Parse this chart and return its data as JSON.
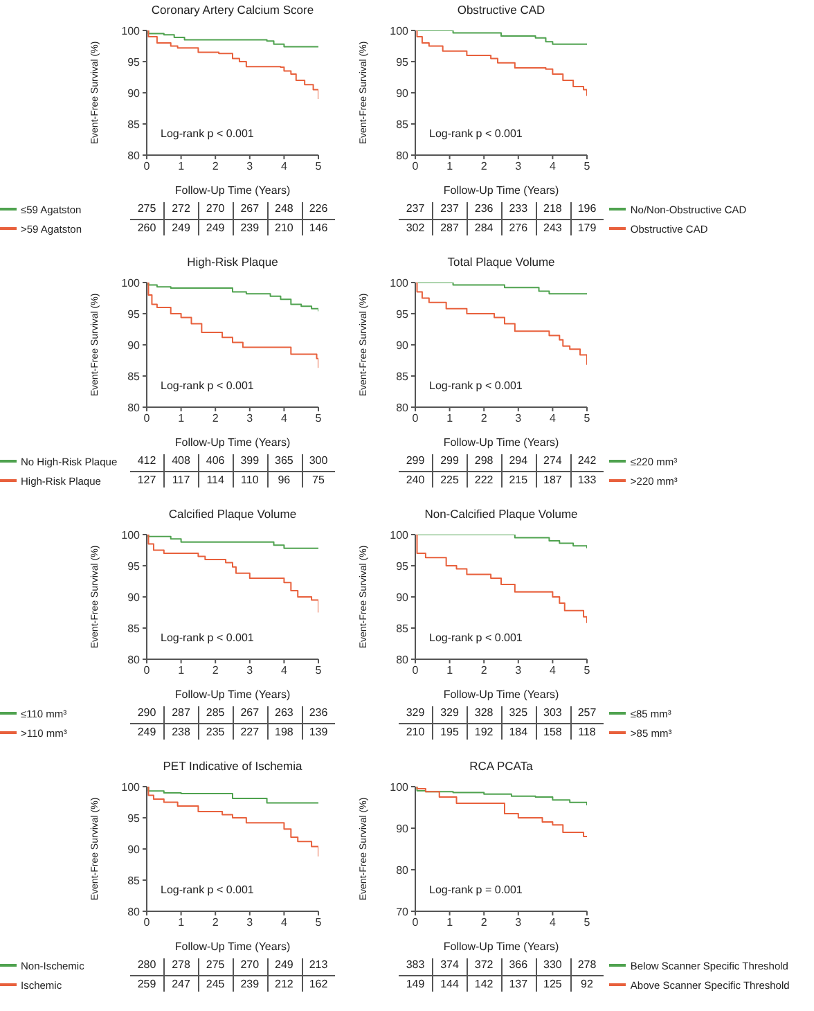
{
  "chart_data": [
    {
      "type": "step",
      "title": "Coronary Artery Calcium Score",
      "xlabel": "Follow-Up Time (Years)",
      "ylabel": "Event-Free Survival (%)",
      "xlim": [
        0,
        5
      ],
      "xticks": [
        0,
        1,
        2,
        3,
        4,
        5
      ],
      "ylim": [
        80,
        100
      ],
      "yticks": [
        80,
        85,
        90,
        95,
        100
      ],
      "legend": "bottom left",
      "series": [
        {
          "name": "≤59 Agatston",
          "color": "#4fa24f",
          "x": [
            0,
            0.05,
            0.5,
            0.8,
            1.1,
            3.5,
            3.7,
            4.0,
            5
          ],
          "values": [
            100,
            99.5,
            99.3,
            98.9,
            98.5,
            98.3,
            97.8,
            97.4,
            97.3
          ]
        },
        {
          "name": ">59 Agatston",
          "color": "#e8603c",
          "x": [
            0,
            0.05,
            0.3,
            0.7,
            0.9,
            1.5,
            2.1,
            2.5,
            2.7,
            2.9,
            3.9,
            4.0,
            4.2,
            4.35,
            4.6,
            4.85,
            5
          ],
          "values": [
            100,
            99,
            98,
            97.5,
            97.2,
            96.5,
            96.3,
            95.5,
            95,
            94.2,
            94.1,
            93.5,
            93,
            92,
            91.3,
            90.5,
            89
          ]
        }
      ],
      "annotations": [
        "Log-rank p < 0.001",
        "275",
        "272",
        "270",
        "267",
        "248",
        "226",
        "260",
        "249",
        "249",
        "239",
        "210",
        "146"
      ]
    },
    {
      "type": "step",
      "title": "Obstructive CAD",
      "xlabel": "Follow-Up Time (Years)",
      "ylabel": "Event-Free Survival (%)",
      "xlim": [
        0,
        5
      ],
      "xticks": [
        0,
        1,
        2,
        3,
        4,
        5
      ],
      "ylim": [
        80,
        100
      ],
      "yticks": [
        80,
        85,
        90,
        95,
        100
      ],
      "legend": "bottom right",
      "series": [
        {
          "name": "No/Non-Obstructive CAD",
          "color": "#4fa24f",
          "x": [
            0,
            1.1,
            2.5,
            3.5,
            3.8,
            4.0,
            5
          ],
          "values": [
            100,
            99.6,
            99.1,
            98.8,
            98.2,
            97.8,
            97.8
          ]
        },
        {
          "name": "Obstructive CAD",
          "color": "#e8603c",
          "x": [
            0,
            0.05,
            0.2,
            0.4,
            0.8,
            1.5,
            2.2,
            2.4,
            2.9,
            3.8,
            4.0,
            4.3,
            4.6,
            4.9,
            5
          ],
          "values": [
            100,
            99,
            98,
            97.5,
            96.7,
            96,
            95.5,
            94.8,
            94,
            93.8,
            93,
            92,
            91,
            90.5,
            89.5
          ]
        }
      ],
      "annotations": [
        "Log-rank p < 0.001",
        "237",
        "237",
        "236",
        "233",
        "218",
        "196",
        "302",
        "287",
        "284",
        "276",
        "243",
        "179"
      ]
    },
    {
      "type": "step",
      "title": "High-Risk Plaque",
      "xlabel": "Follow-Up Time (Years)",
      "ylabel": "Event-Free Survival (%)",
      "xlim": [
        0,
        5
      ],
      "xticks": [
        0,
        1,
        2,
        3,
        4,
        5
      ],
      "ylim": [
        80,
        100
      ],
      "yticks": [
        80,
        85,
        90,
        95,
        100
      ],
      "legend": "bottom left",
      "series": [
        {
          "name": "No High-Risk Plaque",
          "color": "#4fa24f",
          "x": [
            0,
            0.05,
            0.3,
            0.7,
            2.5,
            2.9,
            3.6,
            3.9,
            4.2,
            4.5,
            4.8,
            5
          ],
          "values": [
            100,
            99.6,
            99.3,
            99.1,
            98.5,
            98.2,
            97.8,
            97.3,
            96.5,
            96.2,
            95.8,
            95.4
          ]
        },
        {
          "name": "High-Risk Plaque",
          "color": "#e8603c",
          "x": [
            0,
            0.05,
            0.15,
            0.3,
            0.7,
            1.0,
            1.3,
            1.6,
            2.2,
            2.5,
            2.8,
            4.2,
            4.95,
            5
          ],
          "values": [
            100,
            98,
            96.5,
            96,
            95,
            94.4,
            93.4,
            92,
            91.2,
            90.4,
            89.6,
            88.5,
            87.8,
            86.3
          ]
        }
      ],
      "annotations": [
        "Log-rank p < 0.001",
        "412",
        "408",
        "406",
        "399",
        "365",
        "300",
        "127",
        "117",
        "114",
        "110",
        "96",
        "75"
      ]
    },
    {
      "type": "step",
      "title": "Total Plaque Volume",
      "xlabel": "Follow-Up Time (Years)",
      "ylabel": "Event-Free Survival (%)",
      "xlim": [
        0,
        5
      ],
      "xticks": [
        0,
        1,
        2,
        3,
        4,
        5
      ],
      "ylim": [
        80,
        100
      ],
      "yticks": [
        80,
        85,
        90,
        95,
        100
      ],
      "legend": "bottom right",
      "series": [
        {
          "name": "≤220 mm³",
          "color": "#4fa24f",
          "x": [
            0,
            1.1,
            2.6,
            3.6,
            3.9,
            5
          ],
          "values": [
            100,
            99.6,
            99.2,
            98.6,
            98.2,
            98.2
          ]
        },
        {
          "name": ">220 mm³",
          "color": "#e8603c",
          "x": [
            0,
            0.05,
            0.2,
            0.4,
            0.9,
            1.5,
            2.3,
            2.6,
            2.9,
            3.9,
            4.2,
            4.3,
            4.5,
            4.8,
            5
          ],
          "values": [
            100,
            98.5,
            97.5,
            96.8,
            95.8,
            95,
            94.4,
            93.4,
            92.2,
            91.5,
            90.8,
            89.8,
            89.3,
            88.4,
            86.8
          ]
        }
      ],
      "annotations": [
        "Log-rank p < 0.001",
        "299",
        "299",
        "298",
        "294",
        "274",
        "242",
        "240",
        "225",
        "222",
        "215",
        "187",
        "133"
      ]
    },
    {
      "type": "step",
      "title": "Calcified Plaque Volume",
      "xlabel": "Follow-Up Time (Years)",
      "ylabel": "Event-Free Survival (%)",
      "xlim": [
        0,
        5
      ],
      "xticks": [
        0,
        1,
        2,
        3,
        4,
        5
      ],
      "ylim": [
        80,
        100
      ],
      "yticks": [
        80,
        85,
        90,
        95,
        100
      ],
      "legend": "bottom left",
      "series": [
        {
          "name": "≤110 mm³",
          "color": "#4fa24f",
          "x": [
            0,
            0.05,
            0.7,
            1.0,
            3.7,
            4.0,
            5
          ],
          "values": [
            100,
            99.7,
            99.3,
            98.8,
            98.3,
            97.8,
            97.8
          ]
        },
        {
          "name": ">110 mm³",
          "color": "#e8603c",
          "x": [
            0,
            0.05,
            0.2,
            0.5,
            1.5,
            1.7,
            2.3,
            2.5,
            2.6,
            3.0,
            4.0,
            4.2,
            4.4,
            4.8,
            5
          ],
          "values": [
            100,
            98.5,
            97.5,
            97,
            96.5,
            96,
            95.5,
            94.8,
            93.8,
            93,
            92.3,
            91,
            90,
            89.5,
            87.5
          ]
        }
      ],
      "annotations": [
        "Log-rank p < 0.001",
        "290",
        "287",
        "285",
        "267",
        "263",
        "236",
        "249",
        "238",
        "235",
        "227",
        "198",
        "139"
      ]
    },
    {
      "type": "step",
      "title": "Non-Calcified Plaque Volume",
      "xlabel": "Follow-Up Time (Years)",
      "ylabel": "Event-Free Survival (%)",
      "xlim": [
        0,
        5
      ],
      "xticks": [
        0,
        1,
        2,
        3,
        4,
        5
      ],
      "ylim": [
        80,
        100
      ],
      "yticks": [
        80,
        85,
        90,
        95,
        100
      ],
      "legend": "bottom right",
      "series": [
        {
          "name": "≤85 mm³",
          "color": "#4fa24f",
          "x": [
            0,
            2.9,
            3.9,
            4.2,
            4.6,
            5
          ],
          "values": [
            100,
            99.5,
            99,
            98.6,
            98.2,
            97.8
          ]
        },
        {
          "name": ">85 mm³",
          "color": "#e8603c",
          "x": [
            0,
            0.05,
            0.3,
            0.9,
            1.2,
            1.5,
            2.2,
            2.5,
            2.9,
            4.0,
            4.2,
            4.35,
            4.9,
            5
          ],
          "values": [
            100,
            97,
            96.3,
            95,
            94.5,
            93.6,
            93,
            92,
            90.8,
            90,
            89,
            87.8,
            86.8,
            85.8
          ]
        }
      ],
      "annotations": [
        "Log-rank p < 0.001",
        "329",
        "329",
        "328",
        "325",
        "303",
        "257",
        "210",
        "195",
        "192",
        "184",
        "158",
        "118"
      ]
    },
    {
      "type": "step",
      "title": "PET Indicative of Ischemia",
      "xlabel": "Follow-Up Time (Years)",
      "ylabel": "Event-Free Survival (%)",
      "xlim": [
        0,
        5
      ],
      "xticks": [
        0,
        1,
        2,
        3,
        4,
        5
      ],
      "ylim": [
        80,
        100
      ],
      "yticks": [
        80,
        85,
        90,
        95,
        100
      ],
      "legend": "bottom left",
      "series": [
        {
          "name": "Non-Ischemic",
          "color": "#4fa24f",
          "x": [
            0,
            0.05,
            0.5,
            1.0,
            2.5,
            3.5,
            5
          ],
          "values": [
            100,
            99.3,
            99,
            98.9,
            98.1,
            97.4,
            97.4
          ]
        },
        {
          "name": "Ischemic",
          "color": "#e8603c",
          "x": [
            0,
            0.05,
            0.2,
            0.5,
            0.9,
            1.5,
            2.2,
            2.5,
            2.9,
            4.0,
            4.2,
            4.4,
            4.8,
            5
          ],
          "values": [
            100,
            98.6,
            98,
            97.5,
            96.9,
            96,
            95.5,
            95,
            94.2,
            93.2,
            91.9,
            91.2,
            90.4,
            88.8
          ]
        }
      ],
      "annotations": [
        "Log-rank p < 0.001",
        "280",
        "278",
        "275",
        "270",
        "249",
        "213",
        "259",
        "247",
        "245",
        "239",
        "212",
        "162"
      ]
    },
    {
      "type": "step",
      "title": "RCA PCATa",
      "xlabel": "Follow-Up Time (Years)",
      "ylabel": "Event-Free Survival (%)",
      "xlim": [
        0,
        5
      ],
      "xticks": [
        0,
        1,
        2,
        3,
        4,
        5
      ],
      "ylim": [
        70,
        100
      ],
      "yticks": [
        70,
        80,
        90,
        100
      ],
      "legend": "bottom right",
      "series": [
        {
          "name": "Below Scanner Specific Threshold",
          "color": "#4fa24f",
          "x": [
            0,
            0.05,
            0.3,
            1.1,
            2.0,
            2.8,
            3.5,
            4.0,
            4.5,
            5
          ],
          "values": [
            100,
            99,
            98.8,
            98.6,
            98.2,
            97.7,
            97.5,
            96.8,
            96.2,
            95.5
          ]
        },
        {
          "name": "Above Scanner Specific Threshold",
          "color": "#e8603c",
          "x": [
            0,
            0.05,
            0.3,
            0.7,
            1.2,
            2.6,
            3.0,
            3.7,
            4.0,
            4.3,
            4.9,
            5
          ],
          "values": [
            100,
            99.5,
            98.8,
            97.5,
            96,
            93.5,
            92.5,
            91.5,
            90.8,
            89,
            88,
            88
          ]
        }
      ],
      "annotations": [
        "Log-rank p = 0.001",
        "383",
        "374",
        "372",
        "366",
        "330",
        "278",
        "149",
        "144",
        "142",
        "137",
        "125",
        "92"
      ]
    }
  ]
}
